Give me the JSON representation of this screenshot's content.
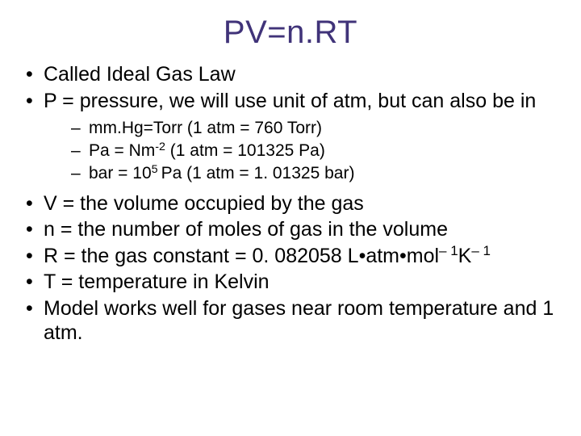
{
  "title_color": "#403379",
  "body_color": "#000000",
  "background_color": "#ffffff",
  "title": "PV=n.RT",
  "bullets": {
    "b0": "Called Ideal Gas Law",
    "b1": "P = pressure, we will use unit of atm, but can also be in",
    "b2": "V = the volume occupied by the gas",
    "b3": "n = the number of moles of gas in the volume",
    "b4_pre": "R = the gas constant = 0. 082058 L•atm•mol",
    "b4_sup1": "– 1",
    "b4_mid": "K",
    "b4_sup2": "– 1",
    "b5": "T = temperature in Kelvin",
    "b6": "Model works well for gases near room temperature and 1 atm."
  },
  "sub": {
    "s0": "mm.Hg=Torr (1 atm = 760 Torr)",
    "s1_pre": "Pa = Nm",
    "s1_sup": "-2",
    "s1_post": " (1 atm = 101325 Pa)",
    "s2_pre": "bar = 10",
    "s2_sup": "5 ",
    "s2_post": "Pa (1 atm = 1. 01325 bar)"
  }
}
